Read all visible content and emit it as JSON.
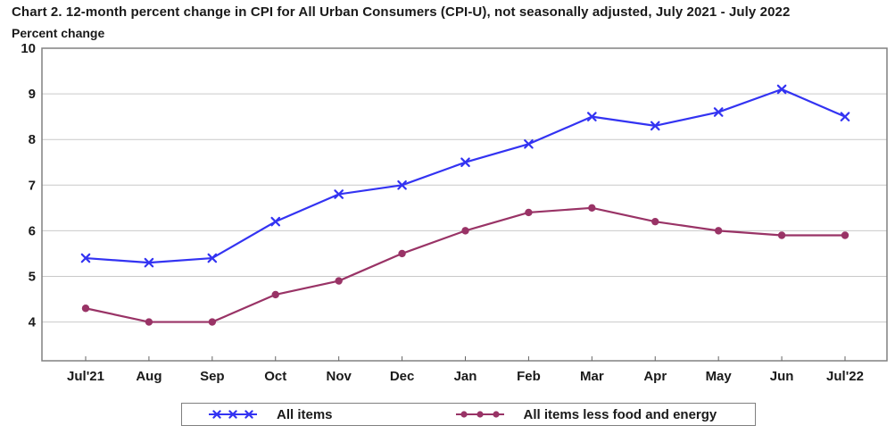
{
  "title": "Chart 2. 12-month percent change in CPI for All Urban Consumers (CPI-U), not seasonally adjusted, July 2021 - July 2022",
  "ylabel_above": "Percent change",
  "chart_data": {
    "type": "line",
    "categories": [
      "Jul'21",
      "Aug",
      "Sep",
      "Oct",
      "Nov",
      "Dec",
      "Jan",
      "Feb",
      "Mar",
      "Apr",
      "May",
      "Jun",
      "Jul'22"
    ],
    "series": [
      {
        "name": "All items",
        "marker": "x",
        "color": "#3333f2",
        "values": [
          5.4,
          5.3,
          5.4,
          6.2,
          6.8,
          7.0,
          7.5,
          7.9,
          8.5,
          8.3,
          8.6,
          9.1,
          8.5
        ]
      },
      {
        "name": "All items less food and energy",
        "marker": "circle",
        "color": "#993366",
        "values": [
          4.3,
          4.0,
          4.0,
          4.6,
          4.9,
          5.5,
          6.0,
          6.4,
          6.5,
          6.2,
          6.0,
          5.9,
          5.9
        ]
      }
    ],
    "yticks": [
      4,
      5,
      6,
      7,
      8,
      9,
      10
    ],
    "ylim": [
      3.15,
      10
    ],
    "grid": true,
    "legend_position": "bottom"
  },
  "colors": {
    "grid": "#c9c9c9",
    "frame": "#808080",
    "tick": "#666666",
    "text": "#1a1a1a"
  }
}
